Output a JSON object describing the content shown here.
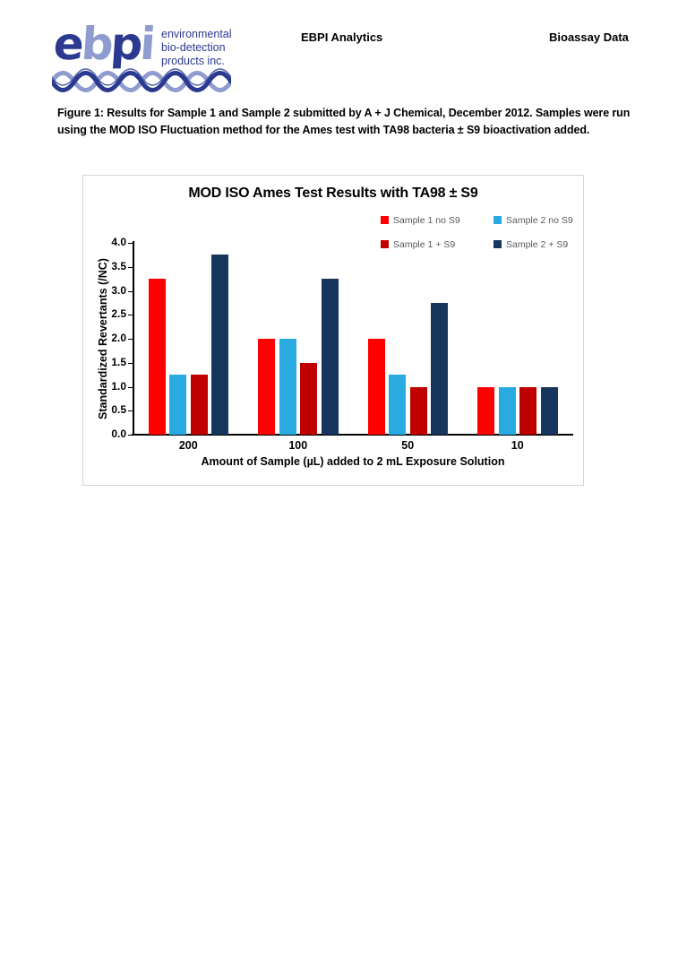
{
  "header": {
    "center_title": "EBPI Analytics",
    "right_title": "Bioassay Data",
    "logo": {
      "letters": [
        {
          "ch": "e",
          "tone": "dark"
        },
        {
          "ch": "b",
          "tone": "light"
        },
        {
          "ch": "p",
          "tone": "dark"
        },
        {
          "ch": "i",
          "tone": "light"
        }
      ],
      "tagline_lines": [
        "environmental",
        "bio-detection",
        "products inc."
      ],
      "brand_dark_blue": "#2B3990",
      "brand_light_blue": "#8E9CCF"
    }
  },
  "caption": {
    "line1": "Figure 1: Results for Sample 1 and Sample 2 submitted by A + J Chemical, December 2012. Samples were run",
    "line2": "using the MOD ISO Fluctuation method for the Ames test with TA98 bacteria ± S9 bioactivation added."
  },
  "chart_data": {
    "type": "bar",
    "title": "MOD ISO Ames Test Results with TA98 ± S9",
    "categories": [
      "200",
      "100",
      "50",
      "10"
    ],
    "series": [
      {
        "name": "Sample 1 no S9",
        "color": "#FF0000",
        "values": [
          3.25,
          2.0,
          2.0,
          1.0
        ]
      },
      {
        "name": "Sample 2 no S9",
        "color": "#29ABE2",
        "values": [
          1.25,
          2.0,
          1.25,
          1.0
        ]
      },
      {
        "name": "Sample 1 + S9",
        "color": "#C00000",
        "values": [
          1.25,
          1.5,
          1.0,
          1.0
        ]
      },
      {
        "name": "Sample 2 + S9",
        "color": "#17365D",
        "values": [
          3.75,
          3.25,
          2.75,
          1.0
        ]
      }
    ],
    "xlabel": "Amount of Sample (µL) added to 2 mL Exposure Solution",
    "ylabel": "Standardized Revertants (/NC)",
    "ylim": [
      0.0,
      4.0
    ],
    "ytick_step": 0.5,
    "ytick_labels": [
      "0.0",
      "0.5",
      "1.0",
      "1.5",
      "2.0",
      "2.5",
      "3.0",
      "3.5",
      "4.0"
    ],
    "legend_position": "top-right-two-rows",
    "grid": false,
    "axis_color": "#000000",
    "legend_text_color": "#595959"
  }
}
